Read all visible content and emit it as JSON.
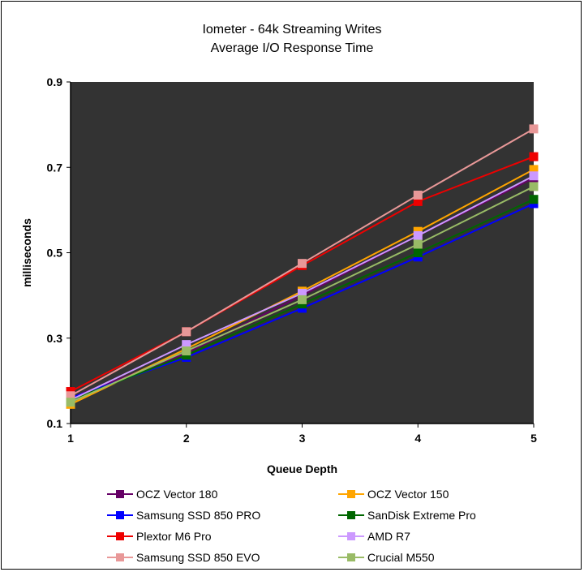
{
  "chart_data": {
    "type": "line",
    "title": "Iometer - 64k Streaming Writes",
    "subtitle": "Average I/O Response Time",
    "xlabel": "Queue Depth",
    "ylabel": "milliseconds",
    "x": [
      1,
      2,
      3,
      4,
      5
    ],
    "xlim": [
      1,
      5
    ],
    "ylim": [
      0.1,
      0.9
    ],
    "yticks": [
      0.1,
      0.3,
      0.5,
      0.7,
      0.9
    ],
    "ytick_labels": [
      "0.1",
      "0.3",
      "0.5",
      "0.7",
      "0.9"
    ],
    "xtick_labels": [
      "1",
      "2",
      "3",
      "4",
      "5"
    ],
    "grid": false,
    "legend_position": "bottom",
    "plot_background": "#333333",
    "series": [
      {
        "name": "OCZ Vector 180",
        "color": "#660066",
        "values": [
          0.16,
          0.265,
          0.4,
          0.54,
          0.675
        ]
      },
      {
        "name": "OCZ Vector 150",
        "color": "#FFA500",
        "values": [
          0.145,
          0.275,
          0.41,
          0.55,
          0.695
        ]
      },
      {
        "name": "Samsung SSD 850 PRO",
        "color": "#0000FF",
        "values": [
          0.16,
          0.255,
          0.37,
          0.49,
          0.615
        ]
      },
      {
        "name": "SanDisk Extreme Pro",
        "color": "#006600",
        "values": [
          0.155,
          0.26,
          0.38,
          0.5,
          0.625
        ]
      },
      {
        "name": "Plextor M6 Pro",
        "color": "#EE0000",
        "values": [
          0.175,
          0.315,
          0.47,
          0.62,
          0.725
        ]
      },
      {
        "name": "AMD R7",
        "color": "#CC99FF",
        "values": [
          0.155,
          0.285,
          0.405,
          0.54,
          0.68
        ]
      },
      {
        "name": "Samsung SSD 850 EVO",
        "color": "#E89898",
        "values": [
          0.165,
          0.315,
          0.475,
          0.635,
          0.79
        ]
      },
      {
        "name": "Crucial M550",
        "color": "#99BB66",
        "values": [
          0.15,
          0.27,
          0.39,
          0.52,
          0.655
        ]
      }
    ]
  }
}
